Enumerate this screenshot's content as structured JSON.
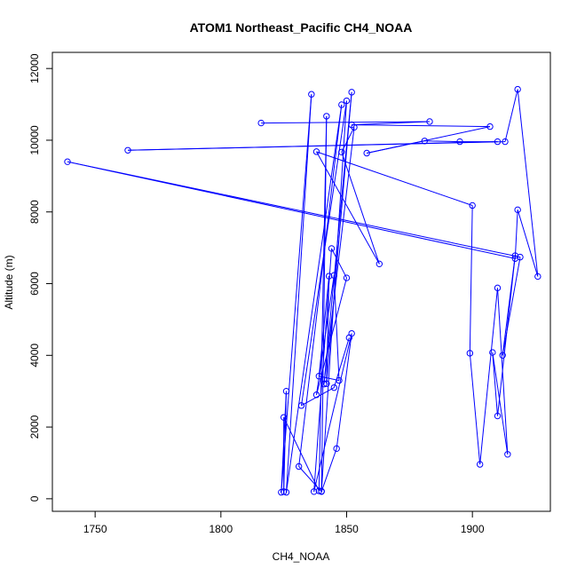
{
  "chart_data": {
    "type": "line",
    "title": "ATOM1 Northeast_Pacific CH4_NOAA",
    "xlabel": "CH4_NOAA",
    "ylabel": "Altitude (m)",
    "xlim": [
      1733,
      1931
    ],
    "ylim": [
      -350,
      12450
    ],
    "xticks": [
      1750,
      1800,
      1850,
      1900
    ],
    "yticks": [
      0,
      2000,
      4000,
      6000,
      8000,
      10000,
      12000
    ],
    "xtick_labels": [
      "1750",
      "1800",
      "1850",
      "1900"
    ],
    "ytick_labels": [
      "0",
      "2000",
      "4000",
      "6000",
      "8000",
      "10000",
      "12000"
    ],
    "grid": false,
    "series": [
      {
        "color": "#0000ff",
        "marker": "open-circle",
        "points": [
          [
            1816,
            10480
          ],
          [
            1883,
            10520
          ],
          [
            1852,
            10430
          ],
          [
            1907,
            10380
          ],
          [
            1858,
            9640
          ],
          [
            1881,
            9980
          ],
          [
            1895,
            9960
          ],
          [
            1910,
            9960
          ],
          [
            1763,
            9720
          ],
          [
            1913,
            9960
          ],
          [
            1918,
            11420
          ],
          [
            1926,
            6200
          ],
          [
            1918,
            8060
          ],
          [
            1917,
            6700
          ],
          [
            1739,
            9400
          ],
          [
            1919,
            6740
          ],
          [
            1912,
            4000
          ],
          [
            1917,
            6780
          ],
          [
            1910,
            2310
          ],
          [
            1908,
            4080
          ],
          [
            1914,
            1240
          ],
          [
            1910,
            5880
          ],
          [
            1903,
            960
          ],
          [
            1899,
            4060
          ],
          [
            1900,
            8180
          ],
          [
            1838,
            9680
          ],
          [
            1863,
            6550
          ],
          [
            1848,
            9670
          ],
          [
            1853,
            10360
          ],
          [
            1841,
            3200
          ],
          [
            1852,
            11340
          ],
          [
            1842,
            3210
          ],
          [
            1843,
            6210
          ],
          [
            1839,
            3420
          ],
          [
            1847,
            3300
          ],
          [
            1845,
            6230
          ],
          [
            1838,
            2900
          ],
          [
            1850,
            6160
          ],
          [
            1844,
            6980
          ],
          [
            1837,
            200
          ],
          [
            1852,
            4610
          ],
          [
            1846,
            1400
          ],
          [
            1840,
            200
          ],
          [
            1831,
            900
          ],
          [
            1848,
            10990
          ],
          [
            1826,
            180
          ],
          [
            1836,
            11280
          ],
          [
            1824,
            180
          ],
          [
            1826,
            3000
          ],
          [
            1825,
            200
          ],
          [
            1825,
            2270
          ],
          [
            1839,
            220
          ],
          [
            1842,
            10670
          ],
          [
            1840,
            210
          ],
          [
            1850,
            11100
          ],
          [
            1832,
            2600
          ],
          [
            1845,
            3100
          ],
          [
            1851,
            4490
          ]
        ]
      }
    ]
  }
}
